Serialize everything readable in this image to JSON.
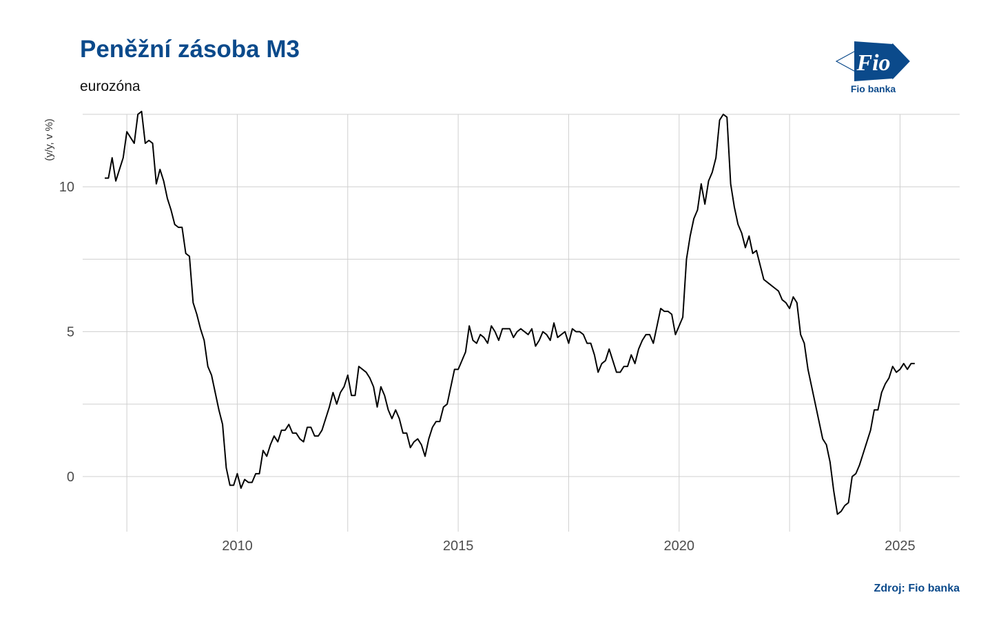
{
  "logo": {
    "icon": "fio-flag-logo",
    "wordmark": "Fio",
    "caption": "Fio banka",
    "color": "#0b4a8b"
  },
  "source_label": "Zdroj: Fio banka",
  "chart_data": {
    "type": "line",
    "title": "Peněžní zásoba M3",
    "subtitle": "eurozóna",
    "xlabel": "",
    "ylabel": "(y/y, v %)",
    "xlim": [
      2006.5,
      2026.35
    ],
    "ylim": [
      -1.9,
      12.5
    ],
    "x_ticks": [
      2010,
      2015,
      2020,
      2025
    ],
    "y_ticks": [
      0,
      5,
      10
    ],
    "grid": true,
    "legend": "none",
    "line_color": "#000000",
    "series": [
      {
        "start": 2007.0,
        "step": 0.0833333,
        "values": [
          10.3,
          10.3,
          11.0,
          10.2,
          10.6,
          11.0,
          11.9,
          11.7,
          11.5,
          12.5,
          12.6,
          11.5,
          11.6,
          11.5,
          10.1,
          10.6,
          10.2,
          9.6,
          9.2,
          8.7,
          8.6,
          8.6,
          7.7,
          7.6,
          6.0,
          5.6,
          5.1,
          4.7,
          3.8,
          3.5,
          2.9,
          2.3,
          1.8,
          0.3,
          -0.3,
          -0.3,
          0.1,
          -0.4,
          -0.1,
          -0.2,
          -0.2,
          0.1,
          0.1,
          0.9,
          0.7,
          1.1,
          1.4,
          1.2,
          1.6,
          1.6,
          1.8,
          1.5,
          1.5,
          1.3,
          1.2,
          1.7,
          1.7,
          1.4,
          1.4,
          1.6,
          2.0,
          2.4,
          2.9,
          2.5,
          2.9,
          3.1,
          3.5,
          2.8,
          2.8,
          3.8,
          3.7,
          3.6,
          3.4,
          3.1,
          2.4,
          3.1,
          2.8,
          2.3,
          2.0,
          2.3,
          2.0,
          1.5,
          1.5,
          1.0,
          1.2,
          1.3,
          1.1,
          0.7,
          1.3,
          1.7,
          1.9,
          1.9,
          2.4,
          2.5,
          3.1,
          3.7,
          3.7,
          4.0,
          4.3,
          5.2,
          4.7,
          4.6,
          4.9,
          4.8,
          4.6,
          5.2,
          5.0,
          4.7,
          5.1,
          5.1,
          5.1,
          4.8,
          5.0,
          5.1,
          5.0,
          4.9,
          5.1,
          4.5,
          4.7,
          5.0,
          4.9,
          4.7,
          5.3,
          4.8,
          4.9,
          5.0,
          4.6,
          5.1,
          5.0,
          5.0,
          4.9,
          4.6,
          4.6,
          4.2,
          3.6,
          3.9,
          4.0,
          4.4,
          4.0,
          3.6,
          3.6,
          3.8,
          3.8,
          4.2,
          3.9,
          4.4,
          4.7,
          4.9,
          4.9,
          4.6,
          5.2,
          5.8,
          5.7,
          5.7,
          5.6,
          4.9,
          5.2,
          5.5,
          7.5,
          8.3,
          8.9,
          9.2,
          10.1,
          9.4,
          10.2,
          10.5,
          11.0,
          12.3,
          12.5,
          12.4,
          10.1,
          9.3,
          8.7,
          8.4,
          7.9,
          8.3,
          7.7,
          7.8,
          7.3,
          6.8,
          6.7,
          6.6,
          6.5,
          6.4,
          6.1,
          6.0,
          5.8,
          6.2,
          6.0,
          4.9,
          4.6,
          3.7,
          3.1,
          2.5,
          1.9,
          1.3,
          1.1,
          0.5,
          -0.5,
          -1.3,
          -1.2,
          -1.0,
          -0.9,
          0.0,
          0.1,
          0.4,
          0.8,
          1.2,
          1.6,
          2.3,
          2.3,
          2.9,
          3.2,
          3.4,
          3.8,
          3.6,
          3.7,
          3.9,
          3.7,
          3.9,
          3.9
        ]
      }
    ]
  }
}
